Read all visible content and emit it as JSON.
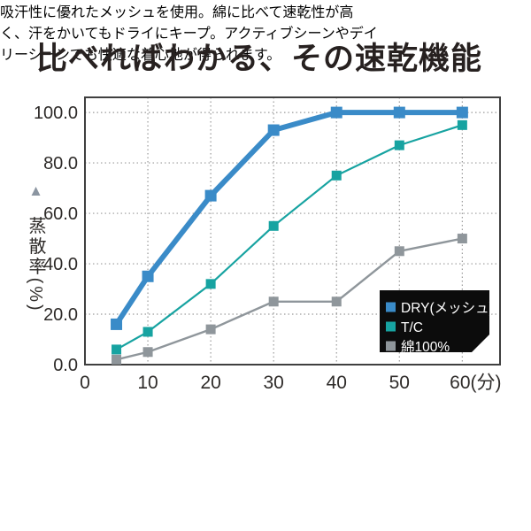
{
  "title": "比べればわかる、その速乾機能",
  "description_lines": [
    "吸汗性に優れたメッシュを使用。綿に比べて速乾性が高",
    "く、汗をかいてもドライにキープ。アクティブシーンやデイ",
    "リーシーンでも快適な着心地が得られます。"
  ],
  "chart_data": {
    "type": "line",
    "x": [
      5,
      10,
      20,
      30,
      40,
      50,
      60
    ],
    "series": [
      {
        "name": "DRY(メッシュ)",
        "color": "#3a8bc8",
        "line_width": 6,
        "marker_size": 13,
        "values": [
          16,
          35,
          67,
          93,
          100,
          100,
          100
        ]
      },
      {
        "name": "T/C",
        "color": "#17a3a1",
        "line_width": 2.2,
        "marker_size": 11,
        "values": [
          6,
          13,
          32,
          55,
          75,
          87,
          95
        ]
      },
      {
        "name": "綿100%",
        "color": "#8f969b",
        "line_width": 2.4,
        "marker_size": 11,
        "values": [
          2,
          5,
          14,
          25,
          25,
          45,
          50
        ]
      }
    ],
    "x_ticks": [
      {
        "value": 0,
        "label": "0"
      },
      {
        "value": 10,
        "label": "10"
      },
      {
        "value": 20,
        "label": "20"
      },
      {
        "value": 30,
        "label": "30"
      },
      {
        "value": 40,
        "label": "40"
      },
      {
        "value": 50,
        "label": "50"
      },
      {
        "value": 60,
        "label": "60(分)"
      }
    ],
    "y_ticks": [
      {
        "value": 0,
        "label": "0.0"
      },
      {
        "value": 20,
        "label": "20.0"
      },
      {
        "value": 40,
        "label": "40.0"
      },
      {
        "value": 60,
        "label": "60.0"
      },
      {
        "value": 80,
        "label": "80.0"
      },
      {
        "value": 100,
        "label": "100.0"
      }
    ],
    "y_axis_label": "蒸散率(%)",
    "y_axis_marker": "▲",
    "xlim": [
      0,
      66
    ],
    "ylim": [
      0,
      106
    ],
    "grid": "dotted",
    "legend_position": "bottom-right",
    "legend_bg": "#0c0c0c",
    "legend_text_color": "#ffffff"
  },
  "colors": {
    "title_text": "#272120",
    "axis_text": "#2e2b29",
    "grid_line": "#9a9a9a",
    "frame": "#3f3f3f",
    "description_text": "#585454",
    "y_axis_marker": "#8b95a1",
    "background": "#ffffff"
  }
}
